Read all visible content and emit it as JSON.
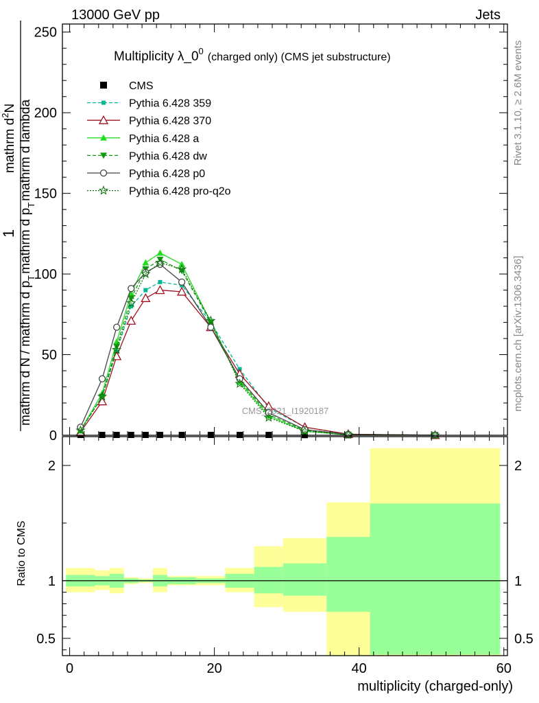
{
  "header": {
    "energy": "13000 GeV pp",
    "category": "Jets"
  },
  "side": {
    "rivet": "Rivet 3.1.10, ≥ 2.6M events",
    "mcplots": "mcplots.cern.ch [arXiv:1306.3436]"
  },
  "watermark": "CMS_2021_I1920187",
  "chart_data": [
    {
      "type": "line",
      "title_main": "Multiplicity λ_0",
      "title_sup": "0",
      "title_rest": "(charged only) (CMS jet substructure)",
      "ylabel_denom": "mathrm d N / mathrm d p",
      "ylabel_denom_sub": "T",
      "ylabel_denom_tail": "mathrm d p",
      "ylabel_denom_sub2": "T",
      "ylabel_denom_tail2": "mathrm d lambda",
      "ylabel_num_top": "1",
      "ylabel_num_bottom": "mathrm d",
      "ylabel_num_sup": "2",
      "ylabel_num_tail": "N",
      "xlim": [
        -1,
        60.5
      ],
      "ylim": [
        0,
        255
      ],
      "yticks": [
        0,
        50,
        100,
        150,
        200,
        250
      ],
      "xticks": [
        0,
        20,
        40,
        60
      ],
      "legend_position": "top-left",
      "series": [
        {
          "name": "CMS",
          "color": "#000000",
          "marker": "square",
          "x": [
            1.5,
            4.5,
            6.5,
            8.5,
            10.5,
            12.5,
            15.5,
            19.5,
            23.5,
            27.5,
            32.5,
            38.5,
            50.5
          ],
          "values": [
            0.2,
            0.2,
            0.2,
            0.2,
            0.2,
            0.2,
            0.2,
            0.2,
            0.2,
            0.2,
            0.1,
            0.05,
            0.02
          ]
        },
        {
          "name": "Pythia 6.428 359",
          "color": "#00b894",
          "marker": "small-square",
          "dash": "dashed",
          "x": [
            1.5,
            4.5,
            6.5,
            8.5,
            10.5,
            12.5,
            15.5,
            19.5,
            23.5,
            27.5,
            32.5,
            38.5,
            50.5
          ],
          "values": [
            3,
            24,
            52,
            80,
            90,
            95,
            93,
            70,
            41,
            17,
            5,
            0.6,
            0.05
          ]
        },
        {
          "name": "Pythia 6.428 370",
          "color": "#a01020",
          "marker": "open-triangle",
          "dash": "solid",
          "x": [
            1.5,
            4.5,
            6.5,
            8.5,
            10.5,
            12.5,
            15.5,
            19.5,
            23.5,
            27.5,
            32.5,
            38.5,
            50.5
          ],
          "values": [
            2,
            21,
            49,
            71,
            85,
            90,
            89,
            67,
            38,
            18,
            5,
            0.7,
            0.05
          ]
        },
        {
          "name": "Pythia 6.428 a",
          "color": "#22dd22",
          "marker": "triangle",
          "dash": "solid",
          "x": [
            1.5,
            4.5,
            6.5,
            8.5,
            10.5,
            12.5,
            15.5,
            19.5,
            23.5,
            27.5,
            32.5,
            38.5,
            50.5
          ],
          "values": [
            3,
            26,
            58,
            88,
            107,
            113,
            106,
            70,
            33,
            12,
            2.5,
            0.3,
            0.02
          ]
        },
        {
          "name": "Pythia 6.428 dw",
          "color": "#119911",
          "marker": "triangle-down",
          "dash": "dashed",
          "x": [
            1.5,
            4.5,
            6.5,
            8.5,
            10.5,
            12.5,
            15.5,
            19.5,
            23.5,
            27.5,
            32.5,
            38.5,
            50.5
          ],
          "values": [
            3,
            24,
            55,
            85,
            103,
            109,
            102,
            70,
            34,
            13,
            3,
            0.4,
            0.02
          ]
        },
        {
          "name": "Pythia 6.428 p0",
          "color": "#444444",
          "marker": "open-circle",
          "dash": "solid",
          "x": [
            1.5,
            4.5,
            6.5,
            8.5,
            10.5,
            12.5,
            15.5,
            19.5,
            23.5,
            27.5,
            32.5,
            38.5,
            50.5
          ],
          "values": [
            5,
            35,
            67,
            91,
            101,
            106,
            95,
            67,
            35,
            14,
            3.5,
            0.5,
            0.05
          ]
        },
        {
          "name": "Pythia 6.428 pro-q2o",
          "color": "#117711",
          "marker": "open-star",
          "dash": "dotted",
          "x": [
            1.5,
            4.5,
            6.5,
            8.5,
            10.5,
            12.5,
            15.5,
            19.5,
            23.5,
            27.5,
            32.5,
            38.5,
            50.5
          ],
          "values": [
            3,
            24,
            53,
            82,
            100,
            107,
            103,
            71,
            32,
            11,
            2.5,
            0.3,
            0.02
          ]
        }
      ]
    },
    {
      "type": "area",
      "ylabel": "Ratio to CMS",
      "xlabel": "multiplicity (charged-only)",
      "xlim": [
        -1,
        60.5
      ],
      "ylim": [
        0.35,
        2.25
      ],
      "yticks": [
        0.5,
        1,
        2
      ],
      "ytick_labels": [
        "0.5",
        "1",
        "2"
      ],
      "xticks": [
        0,
        20,
        40,
        60
      ],
      "band_colors": {
        "outer": "#ffff99",
        "inner": "#99ff99"
      },
      "bins": [
        {
          "x0": -0.5,
          "x1": 3.5,
          "outer": [
            0.9,
            1.11
          ],
          "inner": [
            0.95,
            1.05
          ]
        },
        {
          "x0": 3.5,
          "x1": 5.5,
          "outer": [
            0.92,
            1.09
          ],
          "inner": [
            0.96,
            1.04
          ]
        },
        {
          "x0": 5.5,
          "x1": 7.5,
          "outer": [
            0.89,
            1.11
          ],
          "inner": [
            0.94,
            1.06
          ]
        },
        {
          "x0": 7.5,
          "x1": 9.5,
          "outer": [
            0.97,
            1.03
          ],
          "inner": [
            0.98,
            1.02
          ]
        },
        {
          "x0": 9.5,
          "x1": 11.5,
          "outer": [
            0.98,
            1.02
          ],
          "inner": [
            0.99,
            1.01
          ]
        },
        {
          "x0": 11.5,
          "x1": 13.5,
          "outer": [
            0.9,
            1.11
          ],
          "inner": [
            0.95,
            1.05
          ]
        },
        {
          "x0": 13.5,
          "x1": 17.5,
          "outer": [
            0.96,
            1.04
          ],
          "inner": [
            0.97,
            1.03
          ]
        },
        {
          "x0": 17.5,
          "x1": 21.5,
          "outer": [
            0.96,
            1.04
          ],
          "inner": [
            0.98,
            1.02
          ]
        },
        {
          "x0": 21.5,
          "x1": 25.5,
          "outer": [
            0.9,
            1.11
          ],
          "inner": [
            0.94,
            1.06
          ]
        },
        {
          "x0": 25.5,
          "x1": 29.5,
          "outer": [
            0.77,
            1.3
          ],
          "inner": [
            0.89,
            1.12
          ]
        },
        {
          "x0": 29.5,
          "x1": 35.5,
          "outer": [
            0.73,
            1.37
          ],
          "inner": [
            0.87,
            1.15
          ]
        },
        {
          "x0": 35.5,
          "x1": 41.5,
          "outer": [
            0.35,
            1.68
          ],
          "inner": [
            0.73,
            1.38
          ]
        },
        {
          "x0": 41.5,
          "x1": 59.5,
          "outer": [
            0.35,
            2.15
          ],
          "inner": [
            0.36,
            1.67
          ]
        }
      ]
    }
  ]
}
